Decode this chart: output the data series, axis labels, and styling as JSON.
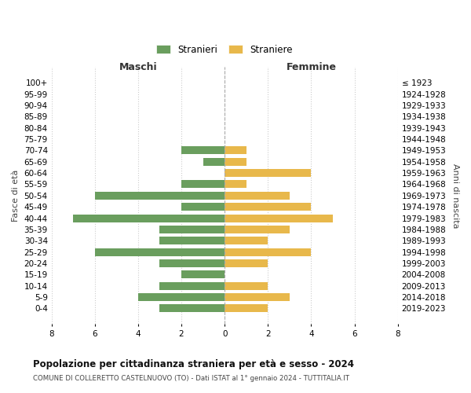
{
  "age_groups": [
    "100+",
    "95-99",
    "90-94",
    "85-89",
    "80-84",
    "75-79",
    "70-74",
    "65-69",
    "60-64",
    "55-59",
    "50-54",
    "45-49",
    "40-44",
    "35-39",
    "30-34",
    "25-29",
    "20-24",
    "15-19",
    "10-14",
    "5-9",
    "0-4"
  ],
  "birth_years": [
    "≤ 1923",
    "1924-1928",
    "1929-1933",
    "1934-1938",
    "1939-1943",
    "1944-1948",
    "1949-1953",
    "1954-1958",
    "1959-1963",
    "1964-1968",
    "1969-1973",
    "1974-1978",
    "1979-1983",
    "1984-1988",
    "1989-1993",
    "1994-1998",
    "1999-2003",
    "2004-2008",
    "2009-2013",
    "2014-2018",
    "2019-2023"
  ],
  "maschi": [
    0,
    0,
    0,
    0,
    0,
    0,
    2,
    1,
    0,
    2,
    6,
    2,
    7,
    3,
    3,
    6,
    3,
    2,
    3,
    4,
    3
  ],
  "femmine": [
    0,
    0,
    0,
    0,
    0,
    0,
    1,
    1,
    4,
    1,
    3,
    4,
    5,
    3,
    2,
    4,
    2,
    0,
    2,
    3,
    2
  ],
  "maschi_color": "#6a9e5e",
  "femmine_color": "#e8b84b",
  "title": "Popolazione per cittadinanza straniera per età e sesso - 2024",
  "subtitle": "COMUNE DI COLLERETTO CASTELNUOVO (TO) - Dati ISTAT al 1° gennaio 2024 - TUTTITALIA.IT",
  "xlabel_left": "Maschi",
  "xlabel_right": "Femmine",
  "ylabel_left": "Fasce di età",
  "ylabel_right": "Anni di nascita",
  "legend_stranieri": "Stranieri",
  "legend_straniere": "Straniere",
  "xlim": 8,
  "background_color": "#ffffff",
  "grid_color": "#cccccc",
  "bar_height": 0.7
}
